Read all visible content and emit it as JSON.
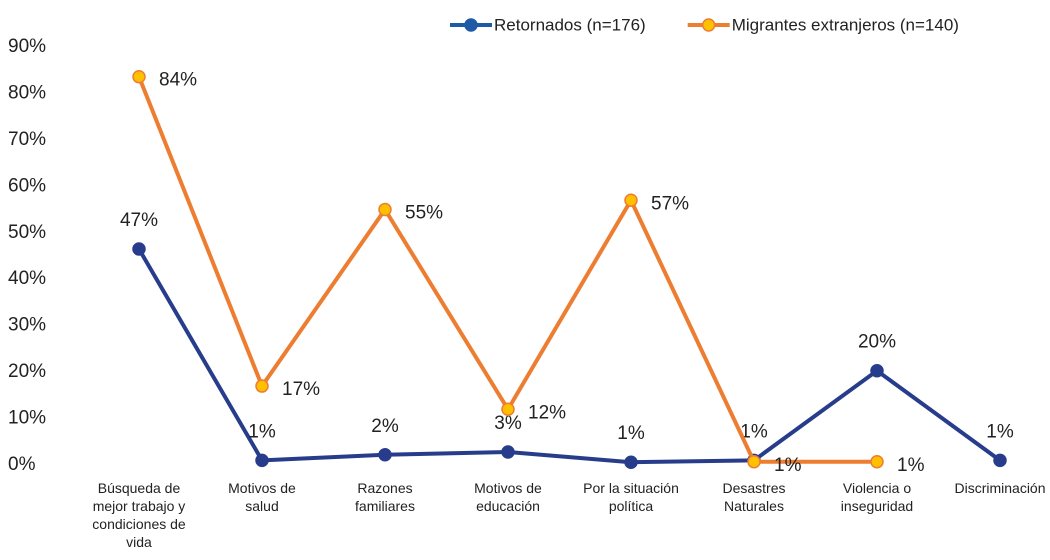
{
  "chart_data": {
    "type": "line",
    "categories": [
      "Búsqueda de\nmejor trabajo y\ncondiciones de\nvida",
      "Motivos de\nsalud",
      "Razones\nfamiliares",
      "Motivos de\neducación",
      "Por la situación\npolítica",
      "Desastres\nNaturales",
      "Violencia o\ninseguridad",
      "Discriminación"
    ],
    "series": [
      {
        "name": "Retornados (n=176)",
        "color": "#283c8c",
        "legend_color": "#1f5aa6",
        "label_color": "#595959",
        "label_pos": "above",
        "values": [
          46.5,
          1,
          2.2,
          2.8,
          0.6,
          1,
          20.3,
          1
        ],
        "value_labels": [
          "47%",
          "1%",
          "2%",
          "3%",
          "1%",
          "1%",
          "20%",
          "1%"
        ]
      },
      {
        "name": "Migrantes extranjeros (n=140)",
        "color": "#ed7d31",
        "marker": "#ffc000",
        "label_color": "#ffc000",
        "label_pos": "right",
        "values": [
          83.6,
          17,
          55,
          12,
          57,
          0.7,
          0.7,
          null
        ],
        "value_labels": [
          "84%",
          "17%",
          "55%",
          "12%",
          "57%",
          "1%",
          "1%",
          null
        ]
      }
    ],
    "ylim": [
      0,
      90
    ],
    "yticks": [
      {
        "value": 0,
        "label": "0%"
      },
      {
        "value": 10,
        "label": "10%"
      },
      {
        "value": 20,
        "label": "20%"
      },
      {
        "value": 30,
        "label": "30%"
      },
      {
        "value": 40,
        "label": "40%"
      },
      {
        "value": 50,
        "label": "50%"
      },
      {
        "value": 60,
        "label": "60%"
      },
      {
        "value": 70,
        "label": "70%"
      },
      {
        "value": 80,
        "label": "80%"
      },
      {
        "value": 90,
        "label": "90%"
      }
    ],
    "legend": "top-right"
  }
}
